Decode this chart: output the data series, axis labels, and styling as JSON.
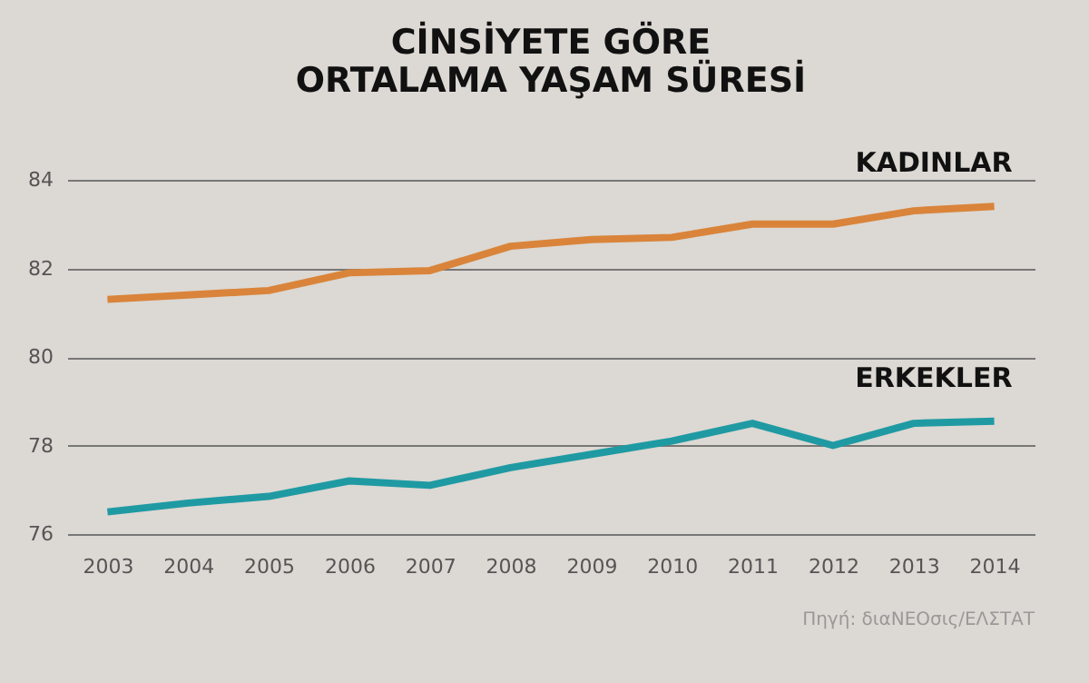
{
  "chart_data": {
    "type": "line",
    "title": "CİNSİYETE GÖRE\nORTALAMA YAŞAM SÜRESİ",
    "categories": [
      "2003",
      "2004",
      "2005",
      "2006",
      "2007",
      "2008",
      "2009",
      "2010",
      "2011",
      "2012",
      "2013",
      "2014"
    ],
    "series": [
      {
        "name": "KADINLAR",
        "color": "#d9843a",
        "values": [
          81.3,
          81.4,
          81.5,
          81.9,
          81.95,
          82.5,
          82.65,
          82.7,
          83.0,
          83.0,
          83.3,
          83.4
        ]
      },
      {
        "name": "ERKEKLER",
        "color": "#1f9aa3",
        "values": [
          76.5,
          76.7,
          76.85,
          77.2,
          77.1,
          77.5,
          77.8,
          78.1,
          78.5,
          78.0,
          78.5,
          78.55
        ]
      }
    ],
    "ylim": [
      76,
      84
    ],
    "yticks": [
      76,
      78,
      80,
      82,
      84
    ],
    "grid": "y",
    "marker": "none",
    "line_style": "solid",
    "annotations": [
      "Πηγή: διαΝΕΟσις/ΕΛΣΤΑΤ"
    ]
  }
}
